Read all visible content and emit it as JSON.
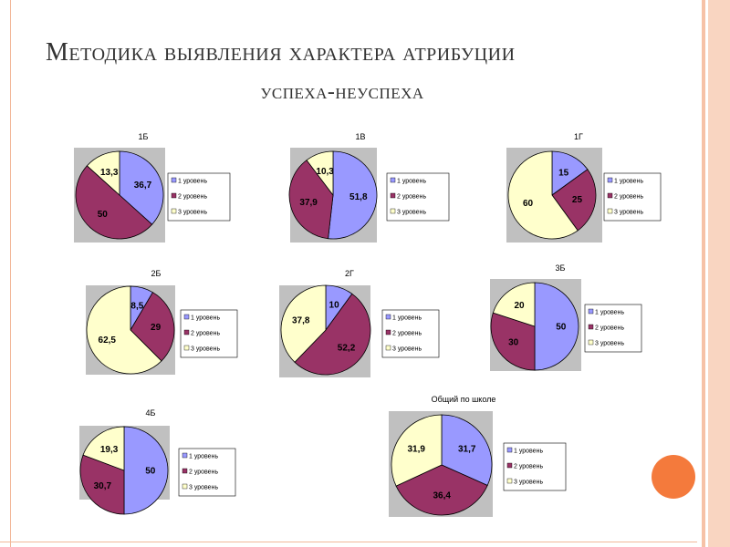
{
  "slide": {
    "title_line1": "Методика выявления характера атрибуции",
    "title_line2": "успеха-неуспеха"
  },
  "legend_labels": [
    "1 уровень",
    "2 уровень",
    "3 уровень"
  ],
  "colors": {
    "level1": "#9999ff",
    "level2": "#993366",
    "level3": "#ffffcc",
    "plot_bg": "#c0c0c0",
    "accent_stripe": "#f6c2a7",
    "accent_dot": "#f47a3c"
  },
  "chart_data": [
    {
      "type": "pie",
      "title": "1Б",
      "categories": [
        "1 уровень",
        "2 уровень",
        "3 уровень"
      ],
      "values": [
        36.7,
        50,
        13.3
      ]
    },
    {
      "type": "pie",
      "title": "1В",
      "categories": [
        "1 уровень",
        "2 уровень",
        "3 уровень"
      ],
      "values": [
        51.8,
        37.9,
        10.3
      ]
    },
    {
      "type": "pie",
      "title": "1Г",
      "categories": [
        "1 уровень",
        "2 уровень",
        "3 уровень"
      ],
      "values": [
        15,
        25,
        60
      ]
    },
    {
      "type": "pie",
      "title": "2Б",
      "categories": [
        "1 уровень",
        "2 уровень",
        "3 уровень"
      ],
      "values": [
        8.5,
        29,
        62.5
      ]
    },
    {
      "type": "pie",
      "title": "2Г",
      "categories": [
        "1 уровень",
        "2 уровень",
        "3 уровень"
      ],
      "values": [
        10,
        52.2,
        37.8
      ]
    },
    {
      "type": "pie",
      "title": "3Б",
      "categories": [
        "1 уровень",
        "2 уровень",
        "3 уровень"
      ],
      "values": [
        50,
        30,
        20
      ]
    },
    {
      "type": "pie",
      "title": "4Б",
      "categories": [
        "1 уровень",
        "2 уровень",
        "3 уровень"
      ],
      "values": [
        50,
        30.7,
        19.3
      ]
    },
    {
      "type": "pie",
      "title": "Общий по школе",
      "categories": [
        "1 уровень",
        "2 уровень",
        "3 уровень"
      ],
      "values": [
        31.7,
        36.4,
        31.9
      ]
    }
  ]
}
